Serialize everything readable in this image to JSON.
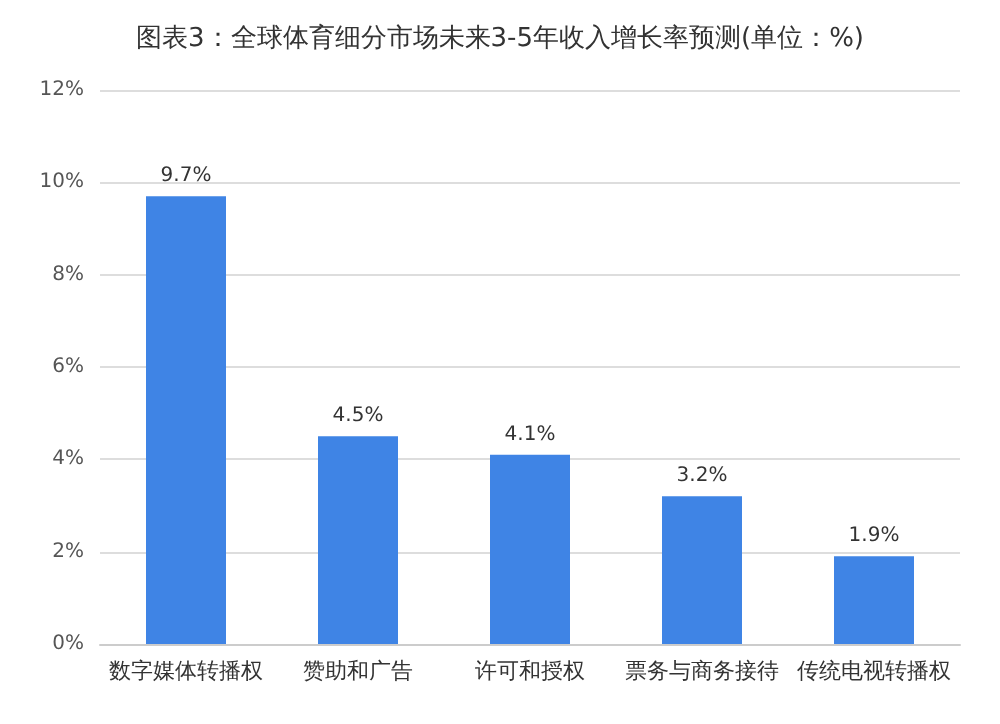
{
  "chart_data": {
    "type": "bar",
    "title": "图表3：全球体育细分市场未来3-5年收入增长率预测(单位：%)",
    "categories": [
      "数字媒体转播权",
      "赞助和广告",
      "许可和授权",
      "票务与商务接待",
      "传统电视转播权"
    ],
    "values": [
      9.7,
      4.5,
      4.1,
      3.2,
      1.9
    ],
    "value_labels": [
      "9.7%",
      "4.5%",
      "4.1%",
      "3.2%",
      "1.9%"
    ],
    "color": "#3f84e5",
    "ylim": [
      0,
      12
    ],
    "yticks": [
      {
        "value": 0,
        "label": "0%"
      },
      {
        "value": 2,
        "label": "2%"
      },
      {
        "value": 4,
        "label": "4%"
      },
      {
        "value": 6,
        "label": "6%"
      },
      {
        "value": 8,
        "label": "8%"
      },
      {
        "value": 10,
        "label": "10%"
      },
      {
        "value": 12,
        "label": "12%"
      }
    ],
    "grid": "y"
  }
}
